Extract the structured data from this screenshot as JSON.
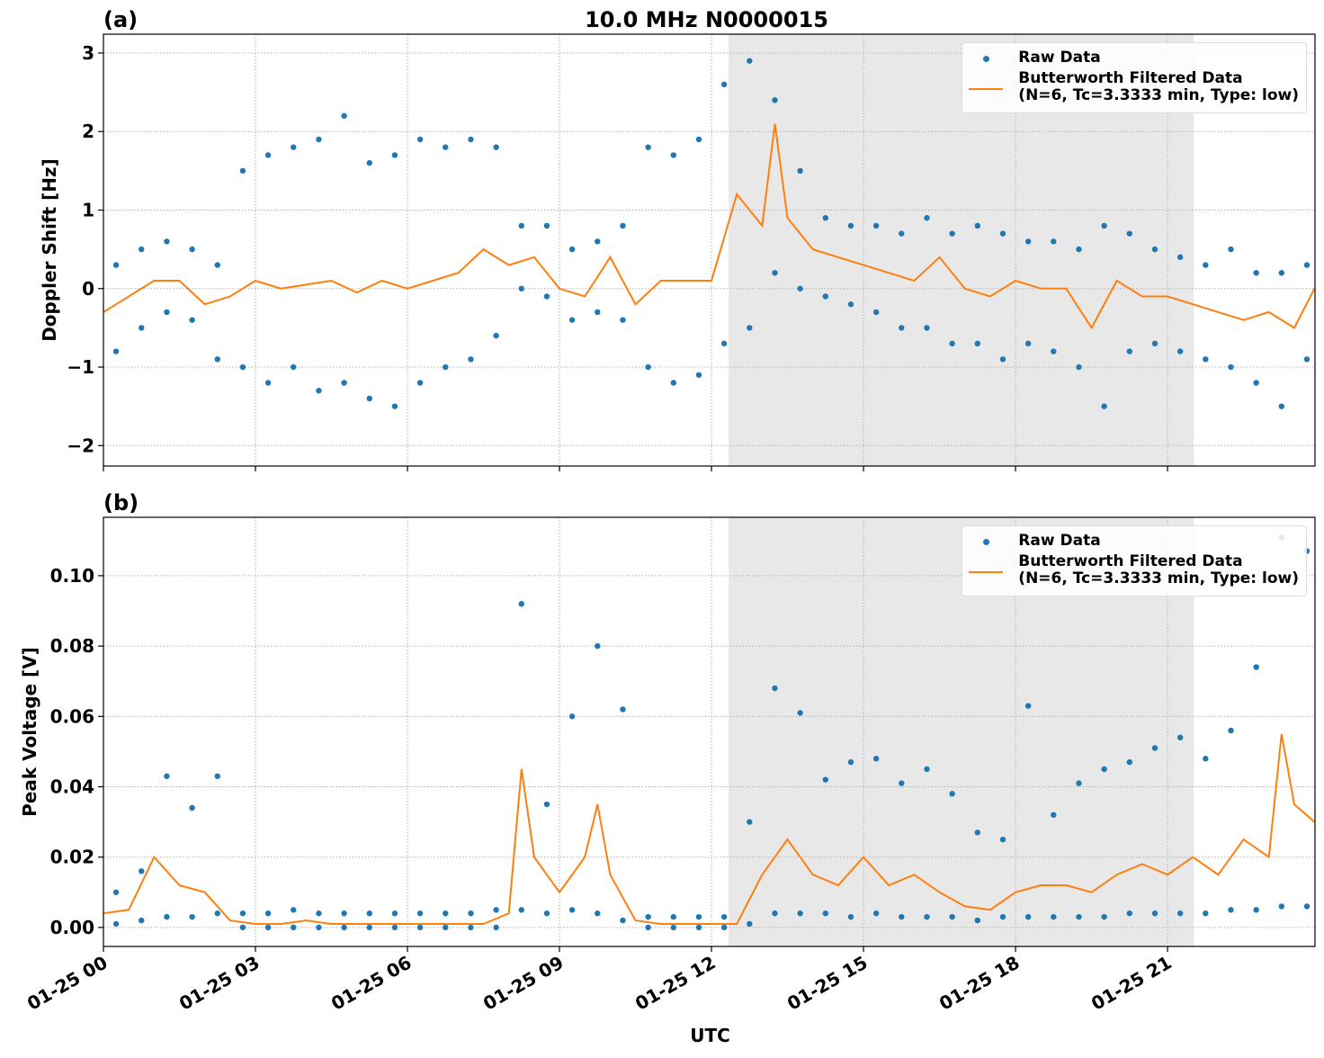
{
  "chart_data": [
    {
      "type": "line",
      "panel_label": "(a)",
      "title": "10.0 MHz N0000015",
      "ylabel": "Doppler Shift [Hz]",
      "xlim": [
        0,
        23.91
      ],
      "ylim": [
        -2.26,
        3.24
      ],
      "xticks": [
        0,
        3,
        6,
        9,
        12,
        15,
        18,
        21
      ],
      "yticks": [
        {
          "value": -2,
          "label": "−2"
        },
        {
          "value": -1,
          "label": "−1"
        },
        0,
        1,
        2,
        3
      ],
      "grid": true,
      "legend": "upper right",
      "span": [
        12.34,
        21.52
      ],
      "span_color": "#e8e8e8",
      "series": [
        {
          "name": "Raw Data",
          "mode": "markers",
          "color": "#1f77b4",
          "x": [
            0.25,
            0.25,
            0.75,
            0.75,
            1.25,
            1.25,
            1.75,
            1.75,
            2.25,
            2.25,
            2.75,
            2.75,
            3.25,
            3.25,
            3.75,
            3.75,
            4.25,
            4.25,
            4.75,
            4.75,
            5.25,
            5.25,
            5.75,
            5.75,
            6.25,
            6.25,
            6.75,
            6.75,
            7.25,
            7.25,
            7.75,
            7.75,
            8.25,
            8.25,
            8.75,
            8.75,
            9.25,
            9.25,
            9.75,
            9.75,
            10.25,
            10.25,
            10.75,
            10.75,
            11.25,
            11.25,
            11.75,
            11.75,
            12.25,
            12.25,
            12.75,
            12.75,
            13.25,
            13.25,
            13.75,
            13.75,
            14.25,
            14.25,
            14.75,
            14.75,
            15.25,
            15.25,
            15.75,
            15.75,
            16.25,
            16.25,
            16.75,
            16.75,
            17.25,
            17.25,
            17.75,
            17.75,
            18.25,
            18.25,
            18.75,
            18.75,
            19.25,
            19.25,
            19.75,
            19.75,
            20.25,
            20.25,
            20.75,
            20.75,
            21.25,
            21.25,
            21.75,
            21.75,
            22.25,
            22.25,
            22.75,
            22.75,
            23.25,
            23.25,
            23.75,
            23.75
          ],
          "values": [
            0.3,
            -0.8,
            0.5,
            -0.5,
            0.6,
            -0.3,
            0.5,
            -0.4,
            0.3,
            -0.9,
            1.5,
            -1.0,
            1.7,
            -1.2,
            1.8,
            -1.0,
            1.9,
            -1.3,
            2.2,
            -1.2,
            1.6,
            -1.4,
            1.7,
            -1.5,
            1.9,
            -1.2,
            1.8,
            -1.0,
            1.9,
            -0.9,
            1.8,
            -0.6,
            0.8,
            0,
            0.8,
            -0.1,
            0.5,
            -0.4,
            0.6,
            -0.3,
            0.8,
            -0.4,
            1.8,
            -1.0,
            1.7,
            -1.2,
            1.9,
            -1.1,
            2.6,
            -0.7,
            2.9,
            -0.5,
            2.4,
            0.2,
            1.5,
            0,
            0.9,
            -0.1,
            0.8,
            -0.2,
            0.8,
            -0.3,
            0.7,
            -0.5,
            0.9,
            -0.5,
            0.7,
            -0.7,
            0.8,
            -0.7,
            0.7,
            -0.9,
            0.6,
            -0.7,
            0.6,
            -0.8,
            0.5,
            -1.0,
            0.8,
            -1.5,
            0.7,
            -0.8,
            0.5,
            -0.7,
            0.4,
            -0.8,
            0.3,
            -0.9,
            0.5,
            -1.0,
            0.2,
            -1.2,
            0.2,
            -1.5,
            0.3,
            -0.9
          ]
        },
        {
          "name": "Butterworth Filtered Data\n(N=6, Tc=3.3333 min, Type: low)",
          "mode": "lines",
          "color": "#ff7f0e",
          "x": [
            0,
            0.5,
            1,
            1.5,
            2,
            2.5,
            3,
            3.5,
            4,
            4.5,
            5,
            5.5,
            6,
            6.5,
            7,
            7.5,
            8,
            8.5,
            9,
            9.5,
            10,
            10.5,
            11,
            11.5,
            12,
            12.5,
            13,
            13.25,
            13.5,
            14,
            14.5,
            15,
            15.5,
            16,
            16.5,
            17,
            17.5,
            18,
            18.5,
            19,
            19.5,
            20,
            20.5,
            21,
            21.5,
            22,
            22.5,
            23,
            23.5,
            23.9
          ],
          "values": [
            -0.3,
            -0.1,
            0.1,
            0.1,
            -0.2,
            -0.1,
            0.1,
            0,
            0.05,
            0.1,
            -0.05,
            0.1,
            0,
            0.1,
            0.2,
            0.5,
            0.3,
            0.4,
            0,
            -0.1,
            0.4,
            -0.2,
            0.1,
            0.1,
            0.1,
            1.2,
            0.8,
            2.1,
            0.9,
            0.5,
            0.4,
            0.3,
            0.2,
            0.1,
            0.4,
            0,
            -0.1,
            0.1,
            0,
            0,
            -0.5,
            0.1,
            -0.1,
            -0.1,
            -0.2,
            -0.3,
            -0.4,
            -0.3,
            -0.5,
            0
          ]
        }
      ]
    },
    {
      "type": "line",
      "panel_label": "(b)",
      "ylabel": "Peak Voltage [V]",
      "xlabel": "UTC",
      "xlim": [
        0,
        23.91
      ],
      "ylim": [
        -0.0054,
        0.1166
      ],
      "xticks": [
        {
          "value": 0,
          "label": "01-25 00"
        },
        {
          "value": 3,
          "label": "01-25 03"
        },
        {
          "value": 6,
          "label": "01-25 06"
        },
        {
          "value": 9,
          "label": "01-25 09"
        },
        {
          "value": 12,
          "label": "01-25 12"
        },
        {
          "value": 15,
          "label": "01-25 15"
        },
        {
          "value": 18,
          "label": "01-25 18"
        },
        {
          "value": 21,
          "label": "01-25 21"
        }
      ],
      "yticks": [
        {
          "value": 0,
          "label": "0.00"
        },
        0.02,
        0.04,
        0.06,
        0.08,
        {
          "value": 0.1,
          "label": "0.10"
        }
      ],
      "grid": true,
      "legend": "upper right",
      "span": [
        12.34,
        21.52
      ],
      "span_color": "#e8e8e8",
      "series": [
        {
          "name": "Raw Data",
          "mode": "markers",
          "color": "#1f77b4",
          "x": [
            0.25,
            0.25,
            0.75,
            0.75,
            1.25,
            1.25,
            1.75,
            1.75,
            2.25,
            2.25,
            2.75,
            2.75,
            3.25,
            3.25,
            3.75,
            3.75,
            4.25,
            4.25,
            4.75,
            4.75,
            5.25,
            5.25,
            5.75,
            5.75,
            6.25,
            6.25,
            6.75,
            6.75,
            7.25,
            7.25,
            7.75,
            7.75,
            8.25,
            8.25,
            8.75,
            8.75,
            9.25,
            9.25,
            9.75,
            9.75,
            10.25,
            10.25,
            10.75,
            10.75,
            11.25,
            11.25,
            11.75,
            11.75,
            12.25,
            12.25,
            12.75,
            12.75,
            13.25,
            13.25,
            13.75,
            13.75,
            14.25,
            14.25,
            14.75,
            14.75,
            15.25,
            15.25,
            15.75,
            15.75,
            16.25,
            16.25,
            16.75,
            16.75,
            17.25,
            17.25,
            17.75,
            17.75,
            18.25,
            18.25,
            18.75,
            18.75,
            19.25,
            19.25,
            19.75,
            19.75,
            20.25,
            20.25,
            20.75,
            20.75,
            21.25,
            21.25,
            21.75,
            21.75,
            22.25,
            22.25,
            22.75,
            22.75,
            23.25,
            23.25,
            23.75,
            23.75
          ],
          "values": [
            0.01,
            0.001,
            0.016,
            0.002,
            0.043,
            0.003,
            0.034,
            0.003,
            0.043,
            0.004,
            0.004,
            0,
            0.004,
            0,
            0.005,
            0,
            0.004,
            0,
            0.004,
            0,
            0.004,
            0,
            0.004,
            0,
            0.004,
            0,
            0.004,
            0,
            0.004,
            0,
            0.005,
            0,
            0.092,
            0.005,
            0.035,
            0.004,
            0.06,
            0.005,
            0.08,
            0.004,
            0.062,
            0.002,
            0.003,
            0,
            0.003,
            0,
            0.003,
            0,
            0.003,
            0,
            0.03,
            0.001,
            0.068,
            0.004,
            0.061,
            0.004,
            0.042,
            0.004,
            0.047,
            0.003,
            0.048,
            0.004,
            0.041,
            0.003,
            0.045,
            0.003,
            0.038,
            0.003,
            0.027,
            0.002,
            0.025,
            0.003,
            0.063,
            0.003,
            0.032,
            0.003,
            0.041,
            0.003,
            0.045,
            0.003,
            0.047,
            0.004,
            0.051,
            0.004,
            0.054,
            0.004,
            0.048,
            0.004,
            0.056,
            0.005,
            0.074,
            0.005,
            0.111,
            0.006,
            0.107,
            0.006
          ]
        },
        {
          "name": "Butterworth Filtered Data\n(N=6, Tc=3.3333 min, Type: low)",
          "mode": "lines",
          "color": "#ff7f0e",
          "x": [
            0,
            0.5,
            1,
            1.5,
            2,
            2.5,
            3,
            3.5,
            4,
            4.5,
            5,
            5.5,
            6,
            6.5,
            7,
            7.5,
            8,
            8.25,
            8.5,
            9,
            9.5,
            9.75,
            10,
            10.5,
            11,
            11.5,
            12,
            12.5,
            13,
            13.5,
            14,
            14.5,
            15,
            15.5,
            16,
            16.5,
            17,
            17.5,
            18,
            18.5,
            19,
            19.5,
            20,
            20.5,
            21,
            21.5,
            22,
            22.5,
            23,
            23.25,
            23.5,
            23.9
          ],
          "values": [
            0.004,
            0.005,
            0.02,
            0.012,
            0.01,
            0.002,
            0.001,
            0.001,
            0.002,
            0.001,
            0.001,
            0.001,
            0.001,
            0.001,
            0.001,
            0.001,
            0.004,
            0.045,
            0.02,
            0.01,
            0.02,
            0.035,
            0.015,
            0.002,
            0.001,
            0.001,
            0.001,
            0.001,
            0.015,
            0.025,
            0.015,
            0.012,
            0.02,
            0.012,
            0.015,
            0.01,
            0.006,
            0.005,
            0.01,
            0.012,
            0.012,
            0.01,
            0.015,
            0.018,
            0.015,
            0.02,
            0.015,
            0.025,
            0.02,
            0.055,
            0.035,
            0.03
          ]
        }
      ]
    }
  ]
}
